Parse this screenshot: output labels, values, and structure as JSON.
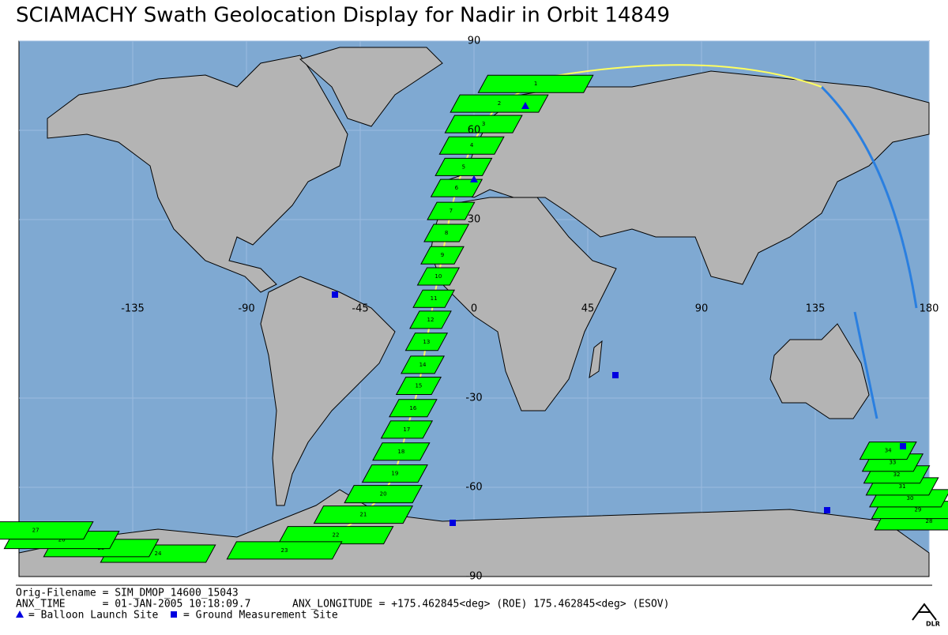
{
  "title": "SCIAMACHY Swath Geolocation Display for Nadir in Orbit 14849",
  "map": {
    "xlim": [
      -180,
      180
    ],
    "ylim": [
      -90,
      90
    ],
    "xticks": [
      -135,
      -90,
      -45,
      0,
      45,
      90,
      135,
      180
    ],
    "yticks": [
      90,
      60,
      30,
      -30,
      -60,
      -90
    ],
    "swaths": [
      {
        "label": "1",
        "lon": 24.4,
        "lat": 75.6
      },
      {
        "label": "2",
        "lon": 10.0,
        "lat": 69.0
      },
      {
        "label": "3",
        "lon": 3.8,
        "lat": 62.1
      },
      {
        "label": "4",
        "lon": -0.9,
        "lat": 54.9
      },
      {
        "label": "5",
        "lon": -4.1,
        "lat": 47.7
      },
      {
        "label": "6",
        "lon": -6.9,
        "lat": 40.6
      },
      {
        "label": "7",
        "lon": -9.1,
        "lat": 32.9
      },
      {
        "label": "8",
        "lon": -10.9,
        "lat": 25.5
      },
      {
        "label": "9",
        "lon": -12.5,
        "lat": 18.0
      },
      {
        "label": "10",
        "lon": -14.1,
        "lat": 10.9
      },
      {
        "label": "11",
        "lon": -15.9,
        "lat": 3.4
      },
      {
        "label": "12",
        "lon": -17.2,
        "lat": -3.7
      },
      {
        "label": "13",
        "lon": -18.8,
        "lat": -11.1
      },
      {
        "label": "14",
        "lon": -20.3,
        "lat": -18.8
      },
      {
        "label": "15",
        "lon": -21.9,
        "lat": -25.9
      },
      {
        "label": "16",
        "lon": -24.1,
        "lat": -33.4
      },
      {
        "label": "17",
        "lon": -26.6,
        "lat": -40.6
      },
      {
        "label": "18",
        "lon": -28.8,
        "lat": -48.0
      },
      {
        "label": "19",
        "lon": -31.3,
        "lat": -55.4
      },
      {
        "label": "20",
        "lon": -35.9,
        "lat": -62.3
      },
      {
        "label": "21",
        "lon": -43.8,
        "lat": -69.2
      },
      {
        "label": "22",
        "lon": -54.7,
        "lat": -76.1
      },
      {
        "label": "23",
        "lon": -75.0,
        "lat": -81.2
      },
      {
        "label": "24",
        "lon": -125.0,
        "lat": -82.3
      },
      {
        "label": "25",
        "lon": -147.5,
        "lat": -80.4
      },
      {
        "label": "26",
        "lon": -163.1,
        "lat": -77.7
      },
      {
        "label": "27",
        "lon": -173.4,
        "lat": -74.5
      },
      {
        "label": "28",
        "lon": 180,
        "lat": -71.4
      },
      {
        "label": "29",
        "lon": 175.6,
        "lat": -67.6
      },
      {
        "label": "30",
        "lon": 172.5,
        "lat": -63.7
      },
      {
        "label": "31",
        "lon": 169.4,
        "lat": -59.7
      },
      {
        "label": "32",
        "lon": 167.2,
        "lat": -55.7
      },
      {
        "label": "33",
        "lon": 165.6,
        "lat": -51.7
      },
      {
        "label": "34",
        "lon": 163.8,
        "lat": -47.7
      }
    ]
  },
  "footer": {
    "filename": "Orig-Filename = SIM_DMOP_14600_15043",
    "anx_time": "ANX_TIME      = 01-JAN-2005 10:18:09.7",
    "anx_longitude": "ANX_LONGITUDE = +175.462845<deg> (ROE) 175.462845<deg> (ESOV)",
    "legend_balloon": "= Balloon Launch Site",
    "legend_ground": "= Ground Measurement Site",
    "logo": "DLR"
  }
}
